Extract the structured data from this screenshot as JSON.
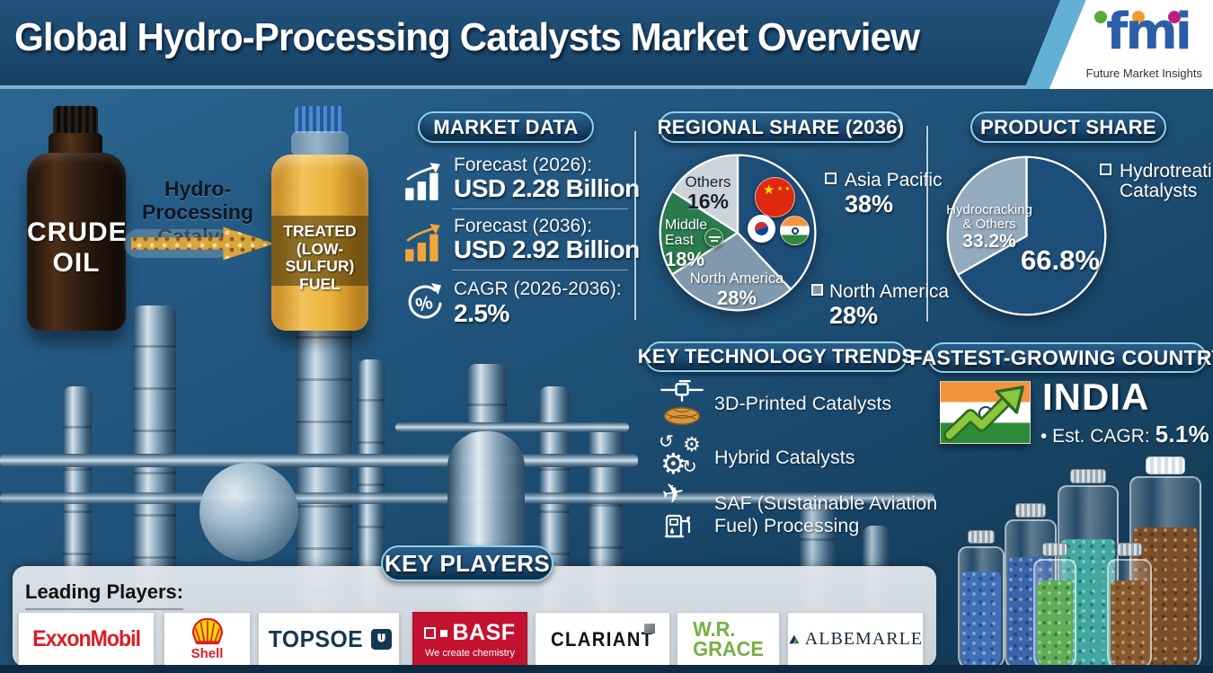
{
  "header": {
    "title": "Global Hydro-Processing Catalysts Market Overview",
    "brand": {
      "name": "fmi",
      "tagline": "Future Market Insights"
    }
  },
  "transformation": {
    "input_line1": "CRUDE",
    "input_line2": "OIL",
    "process_line1": "Hydro-Processing",
    "process_line2": "Catalyst",
    "output_line1": "TREATED",
    "output_line2": "(LOW-SULFUR)",
    "output_line3": "FUEL"
  },
  "market_data": {
    "heading": "MARKET DATA",
    "items": [
      {
        "label": "Forecast (2026):",
        "value": "USD 2.28 Billion"
      },
      {
        "label": "Forecast (2036):",
        "value": "USD 2.92 Billion"
      },
      {
        "label": "CAGR (2026-2036):",
        "value": "2.5%"
      }
    ]
  },
  "regional_share": {
    "heading": "REGIONAL SHARE (2036)",
    "callouts": {
      "others": {
        "l1": "Others",
        "l2": "16%"
      },
      "middle_east": {
        "l1": "Middle",
        "l2": "East",
        "l3": "18%"
      },
      "north_america": {
        "l1": "North America",
        "l2": "28%"
      }
    },
    "legend": [
      {
        "label": "Asia Pacific",
        "display": "38%"
      },
      {
        "label": "North America",
        "display": "28%"
      }
    ]
  },
  "product_share": {
    "heading": "PRODUCT SHARE",
    "inside_value": "66.8%",
    "inside_l1": "Hydrocracking",
    "inside_l2": "& Others",
    "inside_l3": "33.2%",
    "legend_l1": "Hydrotreating",
    "legend_l2": "Catalysts"
  },
  "technology_trends": {
    "heading": "KEY TECHNOLOGY TRENDS",
    "item1": "3D-Printed Catalysts",
    "item2": "Hybrid Catalysts",
    "item3_l1": "SAF (Sustainable Aviation",
    "item3_l2": "Fuel) Processing"
  },
  "fastest_growing_country": {
    "heading": "FASTEST-GROWING COUNTRY",
    "country": "INDIA",
    "stat_label": "• Est. CAGR:",
    "stat_value": "5.1%"
  },
  "key_players": {
    "heading": "KEY PLAYERS",
    "intro": "Leading Players:",
    "logos": [
      {
        "name": "ExxonMobil",
        "display": "ExxonMobil"
      },
      {
        "name": "Shell",
        "display": "Shell"
      },
      {
        "name": "Topsoe",
        "display": "TOPSOE"
      },
      {
        "name": "BASF",
        "display": "BASF",
        "tagline": "We create chemistry"
      },
      {
        "name": "Clariant",
        "display": "CLARIANT"
      },
      {
        "name": "W.R. Grace",
        "display_l1": "W.R.",
        "display_l2": "GRACE"
      },
      {
        "name": "Albemarle",
        "display": "ALBEMARLE"
      }
    ]
  },
  "chart_data": [
    {
      "type": "pie",
      "title": "Regional Share (2036)",
      "legend_position": "right",
      "slices": [
        {
          "label": "Asia Pacific",
          "value": 38,
          "display": "38%",
          "color": "#1d4e79"
        },
        {
          "label": "North America",
          "value": 28,
          "display": "28%",
          "color": "#8099ad"
        },
        {
          "label": "Middle East",
          "value": 18,
          "display": "18%",
          "color": "#2b7a4e"
        },
        {
          "label": "Others",
          "value": 16,
          "display": "16%",
          "color": "#ccd3d9"
        }
      ]
    },
    {
      "type": "pie",
      "title": "Product Share",
      "legend_position": "right",
      "slices": [
        {
          "label": "Hydrotreating Catalysts",
          "value": 66.8,
          "display": "66.8%",
          "color": "#1d4e79"
        },
        {
          "label": "Hydrocracking & Others",
          "value": 33.2,
          "display": "33.2%",
          "color": "#94aabd"
        }
      ]
    }
  ],
  "colors": {
    "accent_border": "#8fd0ea",
    "pill_fill": "#1b4a73",
    "orange_bars": "#f0a43c",
    "basf_red": "#c31230",
    "exxon_red": "#de1b25",
    "grace_green": "#76b043"
  }
}
